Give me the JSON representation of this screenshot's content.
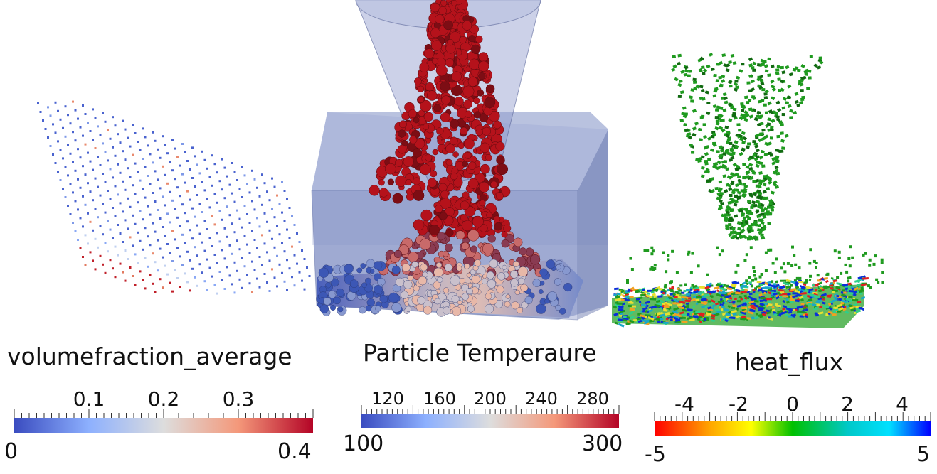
{
  "colors": {
    "background": "#ffffff",
    "cool": "#3a4cc0",
    "warm": "#b40426",
    "particle_red": "#b5121b",
    "particle_green": "#1f9a1f",
    "container": "#7f8fc4"
  },
  "panels": {
    "volumefraction": {
      "title": "volumefraction_average",
      "colormap": "cool-to-warm",
      "ticks": [
        "0.1",
        "0.2",
        "0.3"
      ],
      "min_label": "0",
      "max_label": "0.4",
      "range": [
        0,
        0.4
      ]
    },
    "temperature": {
      "title": "Particle Temperaure",
      "colormap": "cool-to-warm",
      "ticks": [
        "120",
        "160",
        "200",
        "240",
        "280"
      ],
      "min_label": "100",
      "max_label": "300",
      "range": [
        100,
        300
      ]
    },
    "heatflux": {
      "title": "heat_flux",
      "colormap": "rainbow",
      "ticks": [
        "-4",
        "-2",
        "0",
        "2",
        "4"
      ],
      "min_label": "-5",
      "max_label": "5",
      "range": [
        -5,
        5
      ]
    }
  }
}
